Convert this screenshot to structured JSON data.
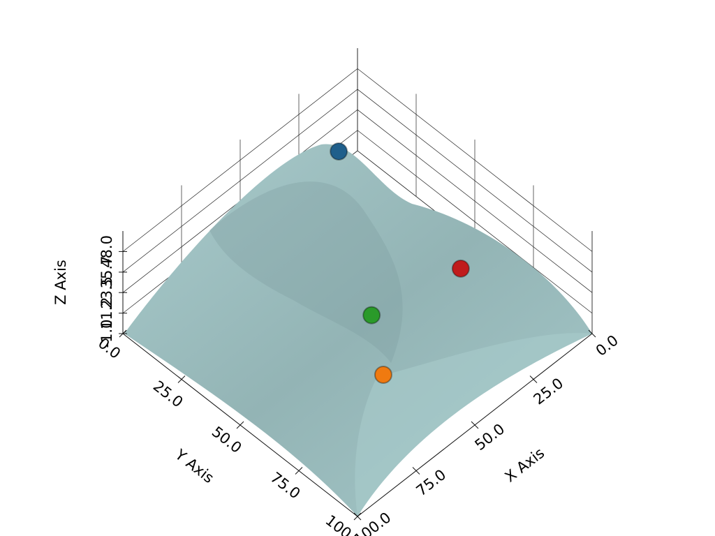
{
  "chart_data": {
    "type": "scatter3d",
    "xlabel": "X Axis",
    "ylabel": "Y Axis",
    "zlabel": "Z Axis",
    "x": [
      10,
      29,
      47,
      58.5
    ],
    "y": [
      2,
      73,
      53,
      69.5
    ],
    "z": [
      11.7,
      40,
      10,
      5
    ],
    "colors": [
      "#1f5f8b",
      "#c01c1c",
      "#2a9a2a",
      "#f07a10"
    ],
    "xlim": [
      0,
      100
    ],
    "ylim": [
      0,
      100
    ],
    "zlim": [
      -1,
      60.25
    ],
    "xticks": [
      {
        "value": 0,
        "label": "0.0"
      },
      {
        "value": 25,
        "label": "25.0"
      },
      {
        "value": 50,
        "label": "50.0"
      },
      {
        "value": 75,
        "label": "75.0"
      },
      {
        "value": 100,
        "label": "100.0"
      }
    ],
    "yticks": [
      {
        "value": 0,
        "label": "0.0"
      },
      {
        "value": 25,
        "label": "25.0"
      },
      {
        "value": 50,
        "label": "50.0"
      },
      {
        "value": 75,
        "label": "75.0"
      },
      {
        "value": 100,
        "label": "100.0"
      }
    ],
    "zticks": [
      {
        "value": -1,
        "label": "-1.0"
      },
      {
        "value": 11.2,
        "label": "11.2"
      },
      {
        "value": 23.5,
        "label": "23.5"
      },
      {
        "value": 35.7,
        "label": "35.7"
      },
      {
        "value": 48,
        "label": "48.0"
      }
    ],
    "grid": true
  }
}
